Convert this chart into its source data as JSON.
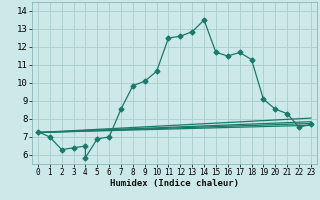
{
  "xlabel": "Humidex (Indice chaleur)",
  "bg_color": "#cce8e8",
  "grid_color": "#aacccc",
  "line_color": "#1a7a6a",
  "xlim": [
    -0.5,
    23.5
  ],
  "ylim": [
    5.5,
    14.5
  ],
  "xticks": [
    0,
    1,
    2,
    3,
    4,
    5,
    6,
    7,
    8,
    9,
    10,
    11,
    12,
    13,
    14,
    15,
    16,
    17,
    18,
    19,
    20,
    21,
    22,
    23
  ],
  "yticks": [
    6,
    7,
    8,
    9,
    10,
    11,
    12,
    13,
    14
  ],
  "line1_x": [
    0,
    1,
    2,
    3,
    4,
    4,
    5,
    6,
    7,
    8,
    9,
    10,
    11,
    12,
    13,
    14,
    15,
    16,
    17,
    18,
    19,
    20,
    21,
    22,
    23
  ],
  "line1_y": [
    7.3,
    7.0,
    6.3,
    6.4,
    6.5,
    5.85,
    6.9,
    7.0,
    8.55,
    9.85,
    10.1,
    10.65,
    12.5,
    12.6,
    12.85,
    13.5,
    11.7,
    11.5,
    11.7,
    11.3,
    9.1,
    8.55,
    8.3,
    7.55,
    7.7
  ],
  "line2_x": [
    0,
    23
  ],
  "line2_y": [
    7.25,
    7.65
  ],
  "line3_x": [
    0,
    23
  ],
  "line3_y": [
    7.25,
    7.75
  ],
  "line4_x": [
    0,
    23
  ],
  "line4_y": [
    7.25,
    7.85
  ],
  "line5_x": [
    0,
    23
  ],
  "line5_y": [
    7.25,
    8.05
  ]
}
